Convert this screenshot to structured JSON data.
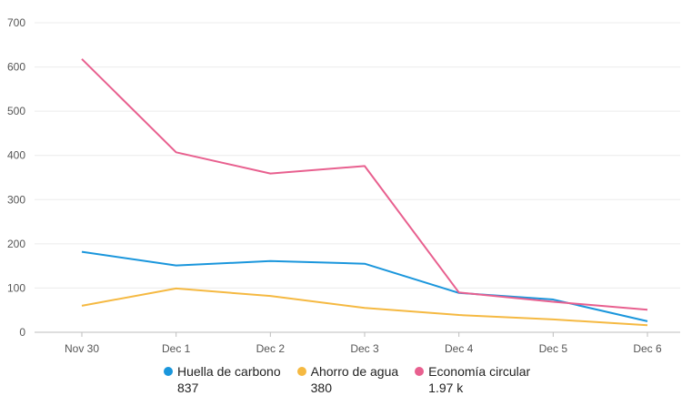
{
  "chart_data": {
    "type": "line",
    "categories": [
      "Nov 30",
      "Dec 1",
      "Dec 2",
      "Dec 3",
      "Dec 4",
      "Dec 5",
      "Dec 6"
    ],
    "ylim": [
      0,
      700
    ],
    "yticks": [
      0,
      100,
      200,
      300,
      400,
      500,
      600,
      700
    ],
    "grid": true,
    "legend_position": "bottom",
    "series": [
      {
        "name": "Huella de carbono",
        "color": "#1a96dc",
        "values": [
          182,
          151,
          161,
          155,
          89,
          74,
          25
        ],
        "total": "837"
      },
      {
        "name": "Ahorro de agua",
        "color": "#f5b942",
        "values": [
          60,
          99,
          82,
          55,
          39,
          29,
          16
        ],
        "total": "380"
      },
      {
        "name": "Economía circular",
        "color": "#e8608f",
        "values": [
          618,
          407,
          359,
          376,
          90,
          69,
          51
        ],
        "total": "1.97 k"
      }
    ]
  }
}
